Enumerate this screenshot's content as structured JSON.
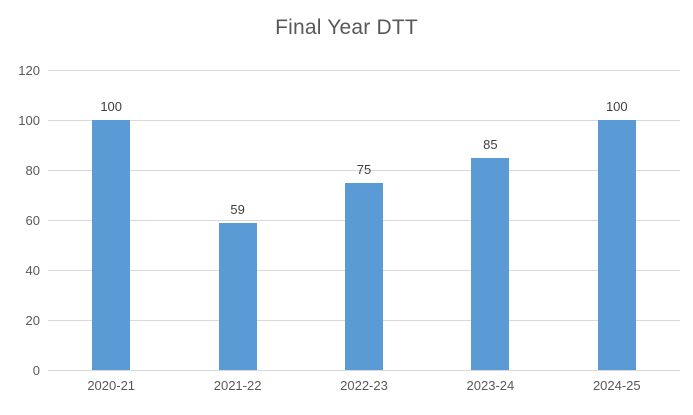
{
  "chart": {
    "title": "Final Year DTT"
  },
  "chart_data": {
    "type": "bar",
    "title": "Final Year DTT",
    "categories": [
      "2020-21",
      "2021-22",
      "2022-23",
      "2023-24",
      "2024-25"
    ],
    "values": [
      100,
      59,
      75,
      85,
      100
    ],
    "data_labels": [
      "100",
      "59",
      "75",
      "85",
      "100"
    ],
    "xlabel": "",
    "ylabel": "",
    "ylim": [
      0,
      120
    ],
    "yticks": [
      0,
      20,
      40,
      60,
      80,
      100,
      120
    ],
    "grid": true,
    "legend": "none",
    "colors": {
      "bar": "#5b9bd5",
      "gridline": "#d9d9d9",
      "axis_text": "#595959",
      "title_text": "#595959",
      "data_label_text": "#404040",
      "background": "#ffffff"
    }
  }
}
